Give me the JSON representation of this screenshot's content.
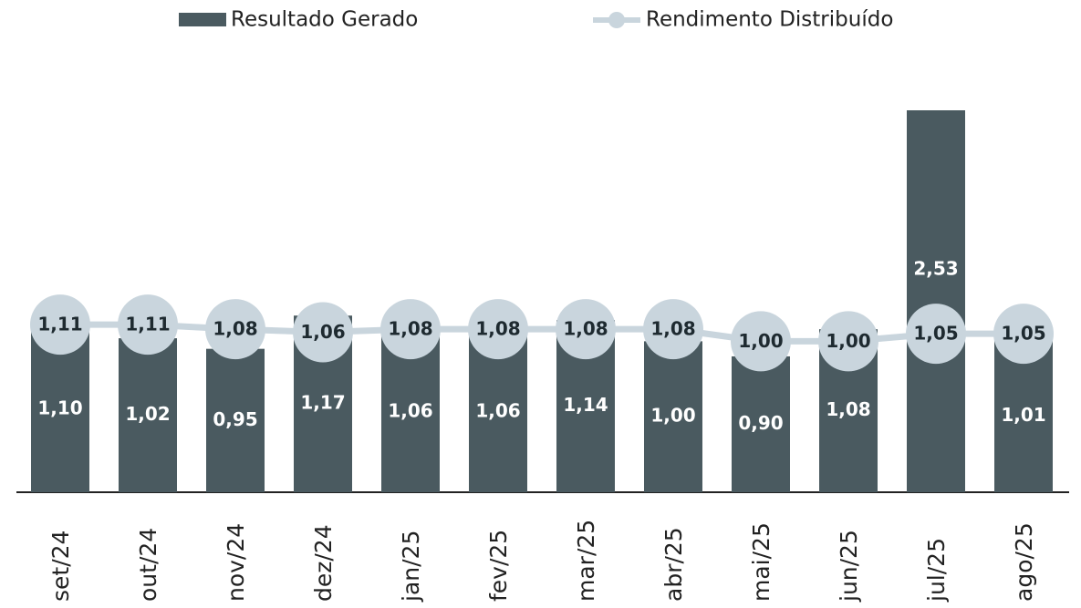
{
  "chart_data": {
    "type": "bar_line",
    "categories": [
      "set/24",
      "out/24",
      "nov/24",
      "dez/24",
      "jan/25",
      "fev/25",
      "mar/25",
      "abr/25",
      "mai/25",
      "jun/25",
      "jul/25",
      "ago/25"
    ],
    "series": [
      {
        "name": "Resultado Gerado",
        "type": "bar",
        "color": "#4a5a60",
        "values": [
          1.1,
          1.02,
          0.95,
          1.17,
          1.06,
          1.06,
          1.14,
          1.0,
          0.9,
          1.08,
          2.53,
          1.01
        ],
        "value_labels": [
          "1,10",
          "1,02",
          "0,95",
          "1,17",
          "1,06",
          "1,06",
          "1,14",
          "1,00",
          "0,90",
          "1,08",
          "2,53",
          "1,01"
        ]
      },
      {
        "name": "Rendimento Distribuído",
        "type": "line",
        "color": "#c9d5dd",
        "values": [
          1.11,
          1.11,
          1.08,
          1.06,
          1.08,
          1.08,
          1.08,
          1.08,
          1.0,
          1.0,
          1.05,
          1.05
        ],
        "value_labels": [
          "1,11",
          "1,11",
          "1,08",
          "1,06",
          "1,08",
          "1,08",
          "1,08",
          "1,08",
          "1,00",
          "1,00",
          "1,05",
          "1,05"
        ]
      }
    ]
  }
}
